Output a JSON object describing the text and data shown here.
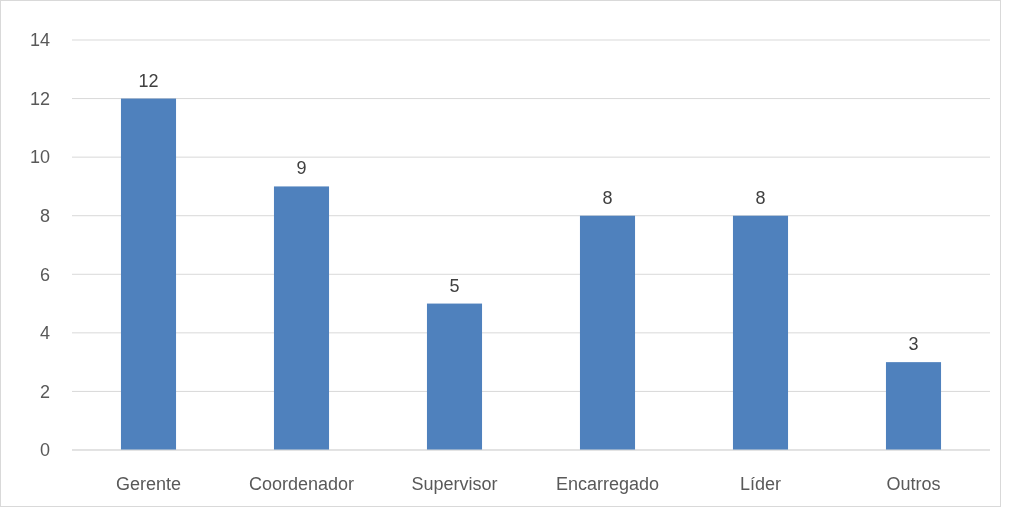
{
  "chart_data": {
    "type": "bar",
    "categories": [
      "Gerente",
      "Coordenador",
      "Supervisor",
      "Encarregado",
      "Líder",
      "Outros"
    ],
    "values": [
      12,
      9,
      5,
      8,
      8,
      3
    ],
    "color": "#4f81bd",
    "ylim": [
      0,
      14
    ],
    "yticks": [
      0,
      2,
      4,
      6,
      8,
      10,
      12,
      14
    ],
    "grid": "y",
    "data_labels": true
  }
}
